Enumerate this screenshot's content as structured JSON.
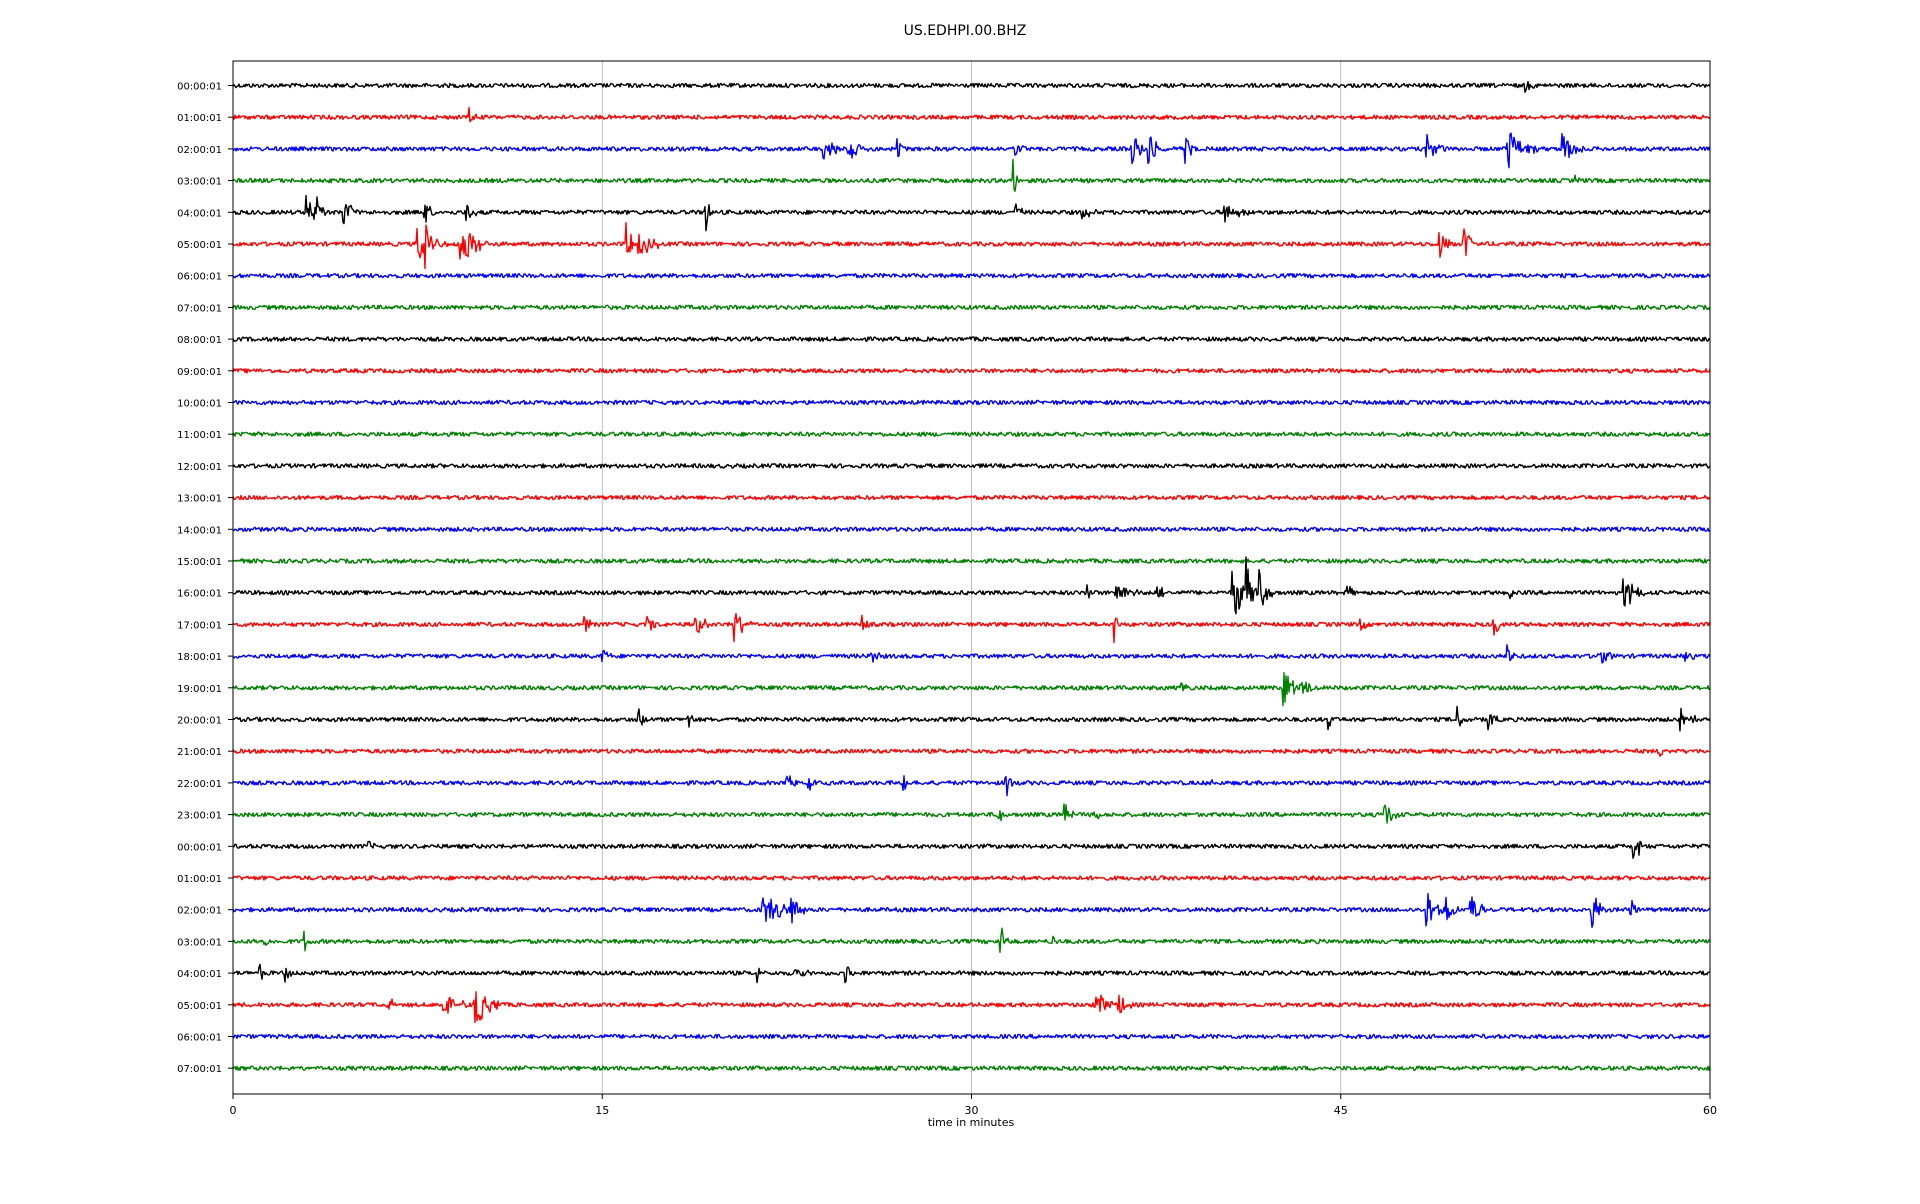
{
  "chart_data": {
    "type": "line",
    "title": "US.EDHPI.00.BHZ",
    "xlabel": "time in minutes",
    "ylabel": "",
    "xlim": [
      0,
      60
    ],
    "x_ticks": [
      0,
      15,
      30,
      45,
      60
    ],
    "x_tick_labels": [
      "0",
      "15",
      "30",
      "45",
      "60"
    ],
    "grid": "vertical lines at x ticks",
    "color_cycle": [
      "#000000",
      "#ff0000",
      "#0000ff",
      "#008000"
    ],
    "rows": [
      {
        "label": "00:00:01",
        "color": "#000000",
        "events": [
          {
            "t": 52.5,
            "amp": 0.25,
            "dur": 0.4
          }
        ]
      },
      {
        "label": "01:00:01",
        "color": "#ff0000",
        "events": [
          {
            "t": 9.6,
            "amp": 0.6,
            "dur": 0.3
          }
        ]
      },
      {
        "label": "02:00:01",
        "color": "#0000ff",
        "events": [
          {
            "t": 24.0,
            "amp": 0.5,
            "dur": 0.8
          },
          {
            "t": 25.0,
            "amp": 0.6,
            "dur": 0.8
          },
          {
            "t": 27.0,
            "amp": 0.5,
            "dur": 0.3
          },
          {
            "t": 31.8,
            "amp": 0.4,
            "dur": 0.4
          },
          {
            "t": 36.5,
            "amp": 0.6,
            "dur": 0.8
          },
          {
            "t": 37.2,
            "amp": 0.9,
            "dur": 0.4
          },
          {
            "t": 38.7,
            "amp": 0.6,
            "dur": 0.4
          },
          {
            "t": 48.5,
            "amp": 0.5,
            "dur": 0.8
          },
          {
            "t": 51.8,
            "amp": 0.8,
            "dur": 1.2
          },
          {
            "t": 54.0,
            "amp": 0.7,
            "dur": 1.0
          }
        ]
      },
      {
        "label": "03:00:01",
        "color": "#008000",
        "events": [
          {
            "t": 31.7,
            "amp": 1.2,
            "dur": 0.15
          },
          {
            "t": 54.5,
            "amp": 0.2,
            "dur": 0.3
          }
        ]
      },
      {
        "label": "04:00:01",
        "color": "#000000",
        "events": [
          {
            "t": 3.0,
            "amp": 0.7,
            "dur": 0.8
          },
          {
            "t": 3.4,
            "amp": 0.8,
            "dur": 0.3
          },
          {
            "t": 4.5,
            "amp": 0.7,
            "dur": 0.6
          },
          {
            "t": 7.8,
            "amp": 0.5,
            "dur": 0.4
          },
          {
            "t": 9.5,
            "amp": 0.4,
            "dur": 0.6
          },
          {
            "t": 19.2,
            "amp": 1.1,
            "dur": 0.2
          },
          {
            "t": 31.8,
            "amp": 0.4,
            "dur": 0.4
          },
          {
            "t": 34.5,
            "amp": 0.3,
            "dur": 0.6
          },
          {
            "t": 40.3,
            "amp": 0.4,
            "dur": 1.0
          }
        ]
      },
      {
        "label": "05:00:01",
        "color": "#ff0000",
        "events": [
          {
            "t": 7.5,
            "amp": 0.7,
            "dur": 1.2
          },
          {
            "t": 7.8,
            "amp": 1.6,
            "dur": 0.2
          },
          {
            "t": 9.2,
            "amp": 0.9,
            "dur": 1.3
          },
          {
            "t": 16.0,
            "amp": 0.9,
            "dur": 0.3
          },
          {
            "t": 16.5,
            "amp": 0.5,
            "dur": 1.0
          },
          {
            "t": 49.0,
            "amp": 0.6,
            "dur": 0.6
          },
          {
            "t": 50.0,
            "amp": 0.9,
            "dur": 0.4
          }
        ]
      },
      {
        "label": "06:00:01",
        "color": "#0000ff",
        "events": []
      },
      {
        "label": "07:00:01",
        "color": "#008000",
        "events": []
      },
      {
        "label": "08:00:01",
        "color": "#000000",
        "events": []
      },
      {
        "label": "09:00:01",
        "color": "#ff0000",
        "events": []
      },
      {
        "label": "10:00:01",
        "color": "#0000ff",
        "events": []
      },
      {
        "label": "11:00:01",
        "color": "#008000",
        "events": []
      },
      {
        "label": "12:00:01",
        "color": "#000000",
        "events": []
      },
      {
        "label": "13:00:01",
        "color": "#ff0000",
        "events": []
      },
      {
        "label": "14:00:01",
        "color": "#0000ff",
        "events": []
      },
      {
        "label": "15:00:01",
        "color": "#008000",
        "events": []
      },
      {
        "label": "16:00:01",
        "color": "#000000",
        "events": [
          {
            "t": 34.7,
            "amp": 0.5,
            "dur": 0.2
          },
          {
            "t": 35.8,
            "amp": 0.6,
            "dur": 1.0
          },
          {
            "t": 37.5,
            "amp": 0.4,
            "dur": 0.5
          },
          {
            "t": 40.6,
            "amp": 1.2,
            "dur": 0.8
          },
          {
            "t": 41.2,
            "amp": 1.4,
            "dur": 0.4
          },
          {
            "t": 41.7,
            "amp": 0.9,
            "dur": 0.6
          },
          {
            "t": 45.3,
            "amp": 0.3,
            "dur": 0.3
          },
          {
            "t": 51.8,
            "amp": 0.4,
            "dur": 0.3
          },
          {
            "t": 56.5,
            "amp": 0.6,
            "dur": 1.0
          }
        ]
      },
      {
        "label": "17:00:01",
        "color": "#ff0000",
        "events": [
          {
            "t": 14.3,
            "amp": 0.4,
            "dur": 0.3
          },
          {
            "t": 16.8,
            "amp": 0.6,
            "dur": 0.4
          },
          {
            "t": 18.8,
            "amp": 0.5,
            "dur": 0.6
          },
          {
            "t": 20.3,
            "amp": 0.8,
            "dur": 0.8
          },
          {
            "t": 25.6,
            "amp": 0.4,
            "dur": 0.3
          },
          {
            "t": 35.8,
            "amp": 1.0,
            "dur": 0.2
          },
          {
            "t": 45.8,
            "amp": 0.4,
            "dur": 0.3
          },
          {
            "t": 51.2,
            "amp": 0.6,
            "dur": 0.4
          }
        ]
      },
      {
        "label": "18:00:01",
        "color": "#0000ff",
        "events": [
          {
            "t": 15.0,
            "amp": 0.3,
            "dur": 0.4
          },
          {
            "t": 25.9,
            "amp": 0.4,
            "dur": 0.4
          },
          {
            "t": 51.8,
            "amp": 0.5,
            "dur": 0.4
          },
          {
            "t": 55.5,
            "amp": 0.4,
            "dur": 0.6
          },
          {
            "t": 59.0,
            "amp": 0.3,
            "dur": 0.4
          }
        ]
      },
      {
        "label": "19:00:01",
        "color": "#008000",
        "events": [
          {
            "t": 38.5,
            "amp": 0.3,
            "dur": 0.4
          },
          {
            "t": 42.7,
            "amp": 0.7,
            "dur": 0.8
          },
          {
            "t": 43.4,
            "amp": 0.5,
            "dur": 0.6
          }
        ]
      },
      {
        "label": "20:00:01",
        "color": "#000000",
        "events": [
          {
            "t": 16.5,
            "amp": 0.4,
            "dur": 0.4
          },
          {
            "t": 18.5,
            "amp": 0.5,
            "dur": 0.3
          },
          {
            "t": 44.5,
            "amp": 0.4,
            "dur": 0.3
          },
          {
            "t": 49.7,
            "amp": 0.6,
            "dur": 0.4
          },
          {
            "t": 51.0,
            "amp": 0.5,
            "dur": 0.4
          },
          {
            "t": 58.8,
            "amp": 0.4,
            "dur": 0.8
          }
        ]
      },
      {
        "label": "21:00:01",
        "color": "#ff0000",
        "events": [
          {
            "t": 58.0,
            "amp": 0.2,
            "dur": 0.3
          }
        ]
      },
      {
        "label": "22:00:01",
        "color": "#0000ff",
        "events": [
          {
            "t": 22.5,
            "amp": 0.4,
            "dur": 0.4
          },
          {
            "t": 23.4,
            "amp": 0.3,
            "dur": 0.4
          },
          {
            "t": 27.2,
            "amp": 0.4,
            "dur": 0.4
          },
          {
            "t": 31.4,
            "amp": 0.6,
            "dur": 0.4
          },
          {
            "t": 39.7,
            "amp": 0.2,
            "dur": 0.3
          }
        ]
      },
      {
        "label": "23:00:01",
        "color": "#008000",
        "events": [
          {
            "t": 31.1,
            "amp": 0.5,
            "dur": 0.3
          },
          {
            "t": 33.8,
            "amp": 0.5,
            "dur": 0.4
          },
          {
            "t": 35.0,
            "amp": 0.5,
            "dur": 0.3
          },
          {
            "t": 46.8,
            "amp": 0.6,
            "dur": 0.6
          }
        ]
      },
      {
        "label": "00:00:01",
        "color": "#000000",
        "events": [
          {
            "t": 5.5,
            "amp": 0.2,
            "dur": 0.3
          },
          {
            "t": 56.9,
            "amp": 0.8,
            "dur": 0.4
          }
        ]
      },
      {
        "label": "01:00:01",
        "color": "#ff0000",
        "events": []
      },
      {
        "label": "02:00:01",
        "color": "#0000ff",
        "events": [
          {
            "t": 21.5,
            "amp": 0.7,
            "dur": 1.5
          },
          {
            "t": 22.7,
            "amp": 0.6,
            "dur": 0.6
          },
          {
            "t": 48.5,
            "amp": 0.8,
            "dur": 0.8
          },
          {
            "t": 49.3,
            "amp": 0.6,
            "dur": 0.6
          },
          {
            "t": 50.3,
            "amp": 0.6,
            "dur": 0.8
          },
          {
            "t": 55.2,
            "amp": 0.8,
            "dur": 0.6
          },
          {
            "t": 56.8,
            "amp": 0.5,
            "dur": 0.3
          }
        ]
      },
      {
        "label": "03:00:01",
        "color": "#008000",
        "events": [
          {
            "t": 1.3,
            "amp": 0.4,
            "dur": 0.3
          },
          {
            "t": 2.9,
            "amp": 0.4,
            "dur": 0.3
          },
          {
            "t": 31.2,
            "amp": 0.6,
            "dur": 0.4
          },
          {
            "t": 33.3,
            "amp": 0.3,
            "dur": 0.3
          }
        ]
      },
      {
        "label": "04:00:01",
        "color": "#000000",
        "events": [
          {
            "t": 1.1,
            "amp": 0.3,
            "dur": 0.3
          },
          {
            "t": 2.1,
            "amp": 0.4,
            "dur": 0.3
          },
          {
            "t": 21.3,
            "amp": 0.4,
            "dur": 0.3
          },
          {
            "t": 22.8,
            "amp": 0.3,
            "dur": 0.6
          },
          {
            "t": 24.9,
            "amp": 0.4,
            "dur": 0.3
          }
        ]
      },
      {
        "label": "05:00:01",
        "color": "#ff0000",
        "events": [
          {
            "t": 6.3,
            "amp": 0.3,
            "dur": 0.5
          },
          {
            "t": 8.5,
            "amp": 0.6,
            "dur": 1.0
          },
          {
            "t": 9.8,
            "amp": 0.9,
            "dur": 1.2
          },
          {
            "t": 35.0,
            "amp": 0.7,
            "dur": 0.8
          },
          {
            "t": 36.0,
            "amp": 0.5,
            "dur": 0.6
          }
        ]
      },
      {
        "label": "06:00:01",
        "color": "#0000ff",
        "events": []
      },
      {
        "label": "07:00:01",
        "color": "#008000",
        "events": [
          {
            "t": 3.0,
            "amp": 0.2,
            "dur": 0.3
          }
        ]
      }
    ]
  }
}
